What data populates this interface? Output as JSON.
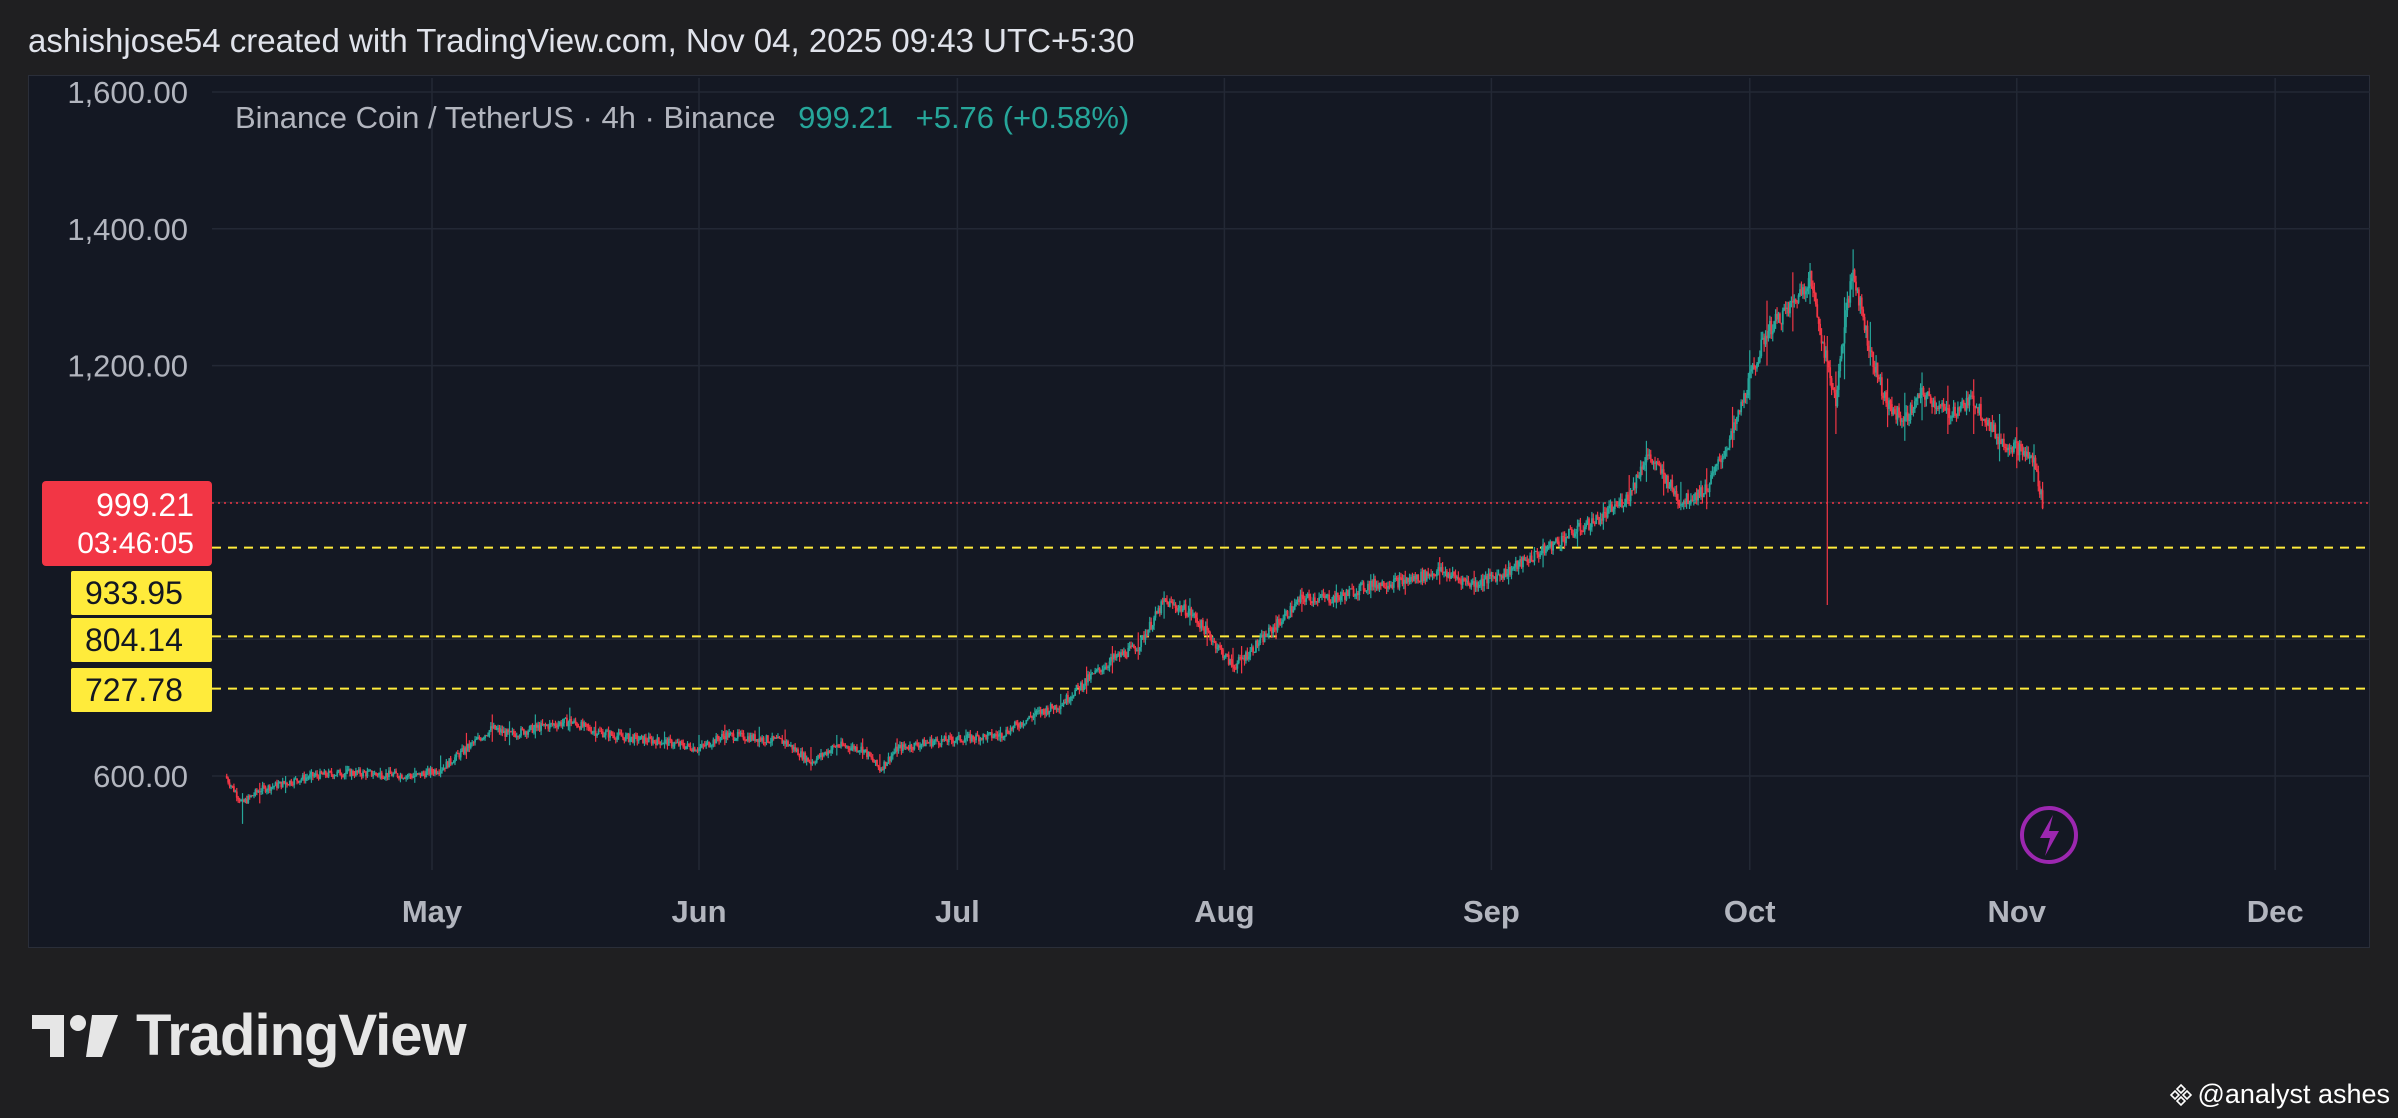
{
  "header": {
    "title": "ashishjose54 created with TradingView.com, Nov 04, 2025 09:43 UTC+5:30"
  },
  "legend": {
    "symbol": "Binance Coin / TetherUS · 4h · Binance",
    "last": "999.21",
    "change": "+5.76 (+0.58%)"
  },
  "price_tag": {
    "price": "999.21",
    "countdown": "03:46:05"
  },
  "levels": [
    "933.95",
    "804.14",
    "727.78"
  ],
  "colors": {
    "up": "#26a69a",
    "down": "#f23645",
    "level_line": "#ffeb3b",
    "background": "#141823"
  },
  "icons": [
    "tradingview-logo-icon",
    "lightning-icon",
    "binance-icon"
  ],
  "brand": {
    "name": "TradingView"
  },
  "watermark": {
    "text": "@analyst ashes"
  },
  "chart_data": {
    "type": "candlestick",
    "title": "Binance Coin / TetherUS · 4h · Binance",
    "y_ticks": [
      "1,600.00",
      "1,400.00",
      "1,200.00",
      "600.00"
    ],
    "x_ticks": [
      "May",
      "Jun",
      "Jul",
      "Aug",
      "Sep",
      "Oct",
      "Nov",
      "Dec"
    ],
    "ylim": [
      470,
      1620
    ],
    "horizontal_levels": [
      933.95,
      804.14,
      727.78
    ],
    "current_price": 999.21,
    "series": [
      {
        "x": [
          "Apr 07",
          "Apr 09",
          "Apr 11",
          "Apr 14",
          "Apr 17",
          "Apr 21",
          "Apr 25",
          "Apr 29",
          "May 02",
          "May 05",
          "May 08",
          "May 10",
          "May 13",
          "May 17",
          "May 20",
          "May 24",
          "May 28",
          "Jun 01",
          "Jun 04",
          "Jun 08",
          "Jun 11",
          "Jun 14",
          "Jun 17",
          "Jun 20",
          "Jun 22",
          "Jun 24",
          "Jun 28",
          "Jul 02",
          "Jul 06",
          "Jul 10",
          "Jul 13",
          "Jul 16",
          "Jul 19",
          "Jul 22",
          "Jul 25",
          "Jul 28",
          "Jul 30",
          "Aug 02",
          "Aug 03",
          "Aug 07",
          "Aug 10",
          "Aug 14",
          "Aug 18",
          "Aug 22",
          "Aug 26",
          "Aug 30",
          "Sep 03",
          "Sep 07",
          "Sep 11",
          "Sep 14",
          "Sep 17",
          "Sep 19",
          "Sep 21",
          "Sep 23",
          "Sep 26",
          "Sep 29",
          "Oct 01",
          "Oct 03",
          "Oct 06",
          "Oct 08",
          "Oct 10",
          "Oct 11",
          "Oct 12",
          "Oct 13",
          "Oct 15",
          "Oct 17",
          "Oct 19",
          "Oct 21",
          "Oct 24",
          "Oct 27",
          "Oct 30",
          "Nov 01",
          "Nov 03",
          "Nov 04"
        ],
        "close": [
          600,
          560,
          580,
          590,
          600,
          605,
          603,
          600,
          610,
          640,
          670,
          660,
          670,
          680,
          665,
          655,
          650,
          640,
          660,
          655,
          650,
          620,
          645,
          640,
          610,
          640,
          650,
          655,
          660,
          690,
          705,
          740,
          770,
          790,
          855,
          840,
          810,
          760,
          770,
          820,
          860,
          860,
          880,
          885,
          900,
          880,
          900,
          930,
          960,
          980,
          1010,
          1070,
          1040,
          1000,
          1020,
          1100,
          1180,
          1250,
          1290,
          1330,
          1200,
          1150,
          1260,
          1340,
          1220,
          1140,
          1120,
          1160,
          1130,
          1150,
          1090,
          1080,
          1060,
          999.21
        ],
        "high": [
          610,
          575,
          590,
          600,
          610,
          615,
          612,
          612,
          630,
          680,
          690,
          680,
          690,
          700,
          680,
          670,
          665,
          660,
          675,
          672,
          668,
          650,
          660,
          655,
          640,
          655,
          660,
          668,
          672,
          700,
          720,
          760,
          790,
          810,
          870,
          860,
          830,
          790,
          790,
          835,
          875,
          880,
          895,
          900,
          920,
          900,
          915,
          940,
          975,
          1000,
          1040,
          1090,
          1060,
          1030,
          1050,
          1140,
          1230,
          1300,
          1340,
          1350,
          1250,
          1230,
          1300,
          1370,
          1280,
          1200,
          1170,
          1190,
          1175,
          1180,
          1130,
          1110,
          1085,
          1030
        ],
        "low": [
          580,
          530,
          560,
          575,
          590,
          595,
          595,
          590,
          600,
          625,
          650,
          645,
          655,
          665,
          650,
          645,
          640,
          630,
          645,
          642,
          640,
          608,
          630,
          625,
          605,
          628,
          640,
          645,
          650,
          675,
          690,
          720,
          750,
          770,
          830,
          820,
          790,
          755,
          750,
          800,
          840,
          845,
          860,
          865,
          880,
          865,
          880,
          905,
          935,
          960,
          995,
          1030,
          1010,
          990,
          990,
          1080,
          1150,
          1200,
          1250,
          1290,
          850,
          1100,
          1180,
          1300,
          1200,
          1110,
          1090,
          1120,
          1100,
          1100,
          1060,
          1050,
          1030,
          990
        ]
      }
    ]
  }
}
